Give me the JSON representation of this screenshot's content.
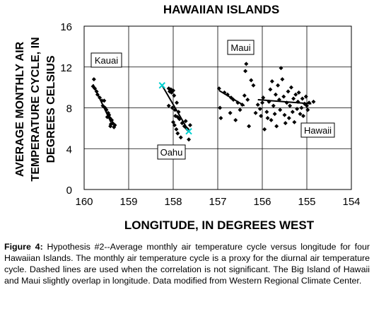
{
  "chart_data": {
    "type": "scatter",
    "title": "HAWAIIAN ISLANDS",
    "xlabel": "LONGITUDE, IN DEGREES WEST",
    "ylabel": "AVERAGE MONTHLY AIR TEMPERATURE CYCLE, IN DEGREES CELSIUS",
    "xlim": [
      160,
      154
    ],
    "x_reversed": true,
    "ylim": [
      0,
      16
    ],
    "xticks": [
      "160",
      "159",
      "158",
      "157",
      "156",
      "155",
      "154"
    ],
    "yticks": [
      "0",
      "4",
      "8",
      "12",
      "16"
    ],
    "grid": true,
    "series": [
      {
        "name": "Kauai",
        "points": [
          [
            159.78,
            10.8
          ],
          [
            159.8,
            10.1
          ],
          [
            159.76,
            9.9
          ],
          [
            159.72,
            9.6
          ],
          [
            159.7,
            9.3
          ],
          [
            159.65,
            9.0
          ],
          [
            159.6,
            8.7
          ],
          [
            159.55,
            8.7
          ],
          [
            159.58,
            8.2
          ],
          [
            159.53,
            8.0
          ],
          [
            159.5,
            7.8
          ],
          [
            159.46,
            7.5
          ],
          [
            159.44,
            7.3
          ],
          [
            159.42,
            7.0
          ],
          [
            159.48,
            7.1
          ],
          [
            159.38,
            6.8
          ],
          [
            159.36,
            6.5
          ],
          [
            159.4,
            6.4
          ],
          [
            159.33,
            6.1
          ],
          [
            159.41,
            6.2
          ],
          [
            159.31,
            6.3
          ]
        ],
        "fit": [
          [
            159.8,
            10.3
          ],
          [
            159.4,
            6.6
          ]
        ]
      },
      {
        "name": "Oahu",
        "points": [
          [
            158.1,
            9.9
          ],
          [
            158.05,
            9.8
          ],
          [
            158.0,
            9.7
          ],
          [
            158.08,
            9.6
          ],
          [
            158.04,
            9.5
          ],
          [
            157.98,
            9.2
          ],
          [
            158.1,
            8.2
          ],
          [
            158.02,
            8.0
          ],
          [
            157.92,
            8.5
          ],
          [
            157.96,
            7.8
          ],
          [
            157.88,
            7.6
          ],
          [
            157.95,
            7.2
          ],
          [
            157.9,
            7.1
          ],
          [
            157.86,
            6.9
          ],
          [
            157.8,
            6.5
          ],
          [
            157.75,
            6.2
          ],
          [
            157.7,
            6.0
          ],
          [
            157.72,
            6.7
          ],
          [
            157.68,
            5.9
          ],
          [
            158.0,
            6.6
          ],
          [
            157.97,
            6.3
          ],
          [
            157.9,
            5.5
          ],
          [
            157.83,
            5.1
          ],
          [
            157.65,
            4.9
          ],
          [
            157.62,
            6.3
          ],
          [
            157.93,
            5.9
          ]
        ],
        "fit": [
          [
            158.25,
            10.2
          ],
          [
            157.65,
            5.7
          ]
        ],
        "endpoints": [
          [
            158.25,
            10.2
          ],
          [
            157.65,
            5.7
          ]
        ]
      },
      {
        "name": "Maui",
        "points": [
          [
            156.97,
            9.9
          ],
          [
            156.95,
            8.0
          ],
          [
            156.93,
            7.0
          ],
          [
            156.85,
            9.5
          ],
          [
            156.78,
            9.3
          ],
          [
            156.72,
            7.5
          ],
          [
            156.7,
            9.0
          ],
          [
            156.65,
            8.8
          ],
          [
            156.6,
            6.8
          ],
          [
            156.55,
            8.5
          ],
          [
            156.5,
            7.8
          ],
          [
            156.45,
            8.3
          ],
          [
            156.4,
            9.2
          ],
          [
            156.38,
            11.6
          ],
          [
            156.36,
            12.3
          ],
          [
            156.33,
            8.8
          ],
          [
            156.3,
            6.2
          ],
          [
            156.25,
            10.7
          ],
          [
            156.2,
            10.2
          ],
          [
            156.15,
            7.5
          ],
          [
            156.1,
            8.3
          ]
        ],
        "fit": [
          [
            156.97,
            9.7
          ],
          [
            156.4,
            8.2
          ]
        ]
      },
      {
        "name": "Hawaii",
        "points": [
          [
            156.05,
            7.9
          ],
          [
            156.03,
            7.2
          ],
          [
            156.0,
            8.5
          ],
          [
            155.98,
            9.0
          ],
          [
            155.95,
            5.9
          ],
          [
            155.9,
            7.6
          ],
          [
            155.88,
            7.0
          ],
          [
            155.85,
            8.6
          ],
          [
            155.82,
            9.8
          ],
          [
            155.8,
            6.8
          ],
          [
            155.78,
            10.6
          ],
          [
            155.75,
            8.2
          ],
          [
            155.72,
            7.4
          ],
          [
            155.7,
            9.3
          ],
          [
            155.68,
            6.2
          ],
          [
            155.65,
            10.2
          ],
          [
            155.62,
            8.8
          ],
          [
            155.6,
            7.8
          ],
          [
            155.58,
            11.9
          ],
          [
            155.55,
            10.8
          ],
          [
            155.52,
            9.1
          ],
          [
            155.5,
            7.3
          ],
          [
            155.48,
            6.5
          ],
          [
            155.45,
            8.5
          ],
          [
            155.42,
            9.6
          ],
          [
            155.4,
            7.0
          ],
          [
            155.38,
            8.2
          ],
          [
            155.35,
            10.0
          ],
          [
            155.32,
            7.6
          ],
          [
            155.3,
            8.9
          ],
          [
            155.28,
            6.6
          ],
          [
            155.25,
            9.3
          ],
          [
            155.22,
            7.9
          ],
          [
            155.2,
            8.6
          ],
          [
            155.18,
            9.5
          ],
          [
            155.15,
            7.4
          ],
          [
            155.12,
            8.0
          ],
          [
            155.1,
            8.9
          ],
          [
            155.08,
            7.2
          ],
          [
            155.05,
            8.4
          ],
          [
            155.02,
            9.1
          ],
          [
            155.0,
            8.2
          ],
          [
            154.98,
            7.8
          ],
          [
            154.95,
            8.5
          ],
          [
            154.85,
            8.6
          ]
        ],
        "fit": [
          [
            156.1,
            8.8
          ],
          [
            154.9,
            8.4
          ]
        ]
      }
    ],
    "labels": {
      "kauai": "Kauai",
      "oahu": "Oahu",
      "maui": "Maui",
      "hawaii": "Hawaii"
    }
  },
  "caption": {
    "figure_label": "Figure 4:",
    "text": " Hypothesis #2--Average monthly air temperature cycle versus longitude for four Hawaiian Islands. The monthly air temperature cycle is a proxy for the diurnal air temperature cycle. Dashed lines are used when the correlation is not significant. The Big Island of Hawaii and Maui slightly overlap in longitude. Data modified from Western Regional Climate Center."
  },
  "colors": {
    "marker": "#000000",
    "endpoint_marker": "#00d0d0",
    "grid": "#000000"
  }
}
